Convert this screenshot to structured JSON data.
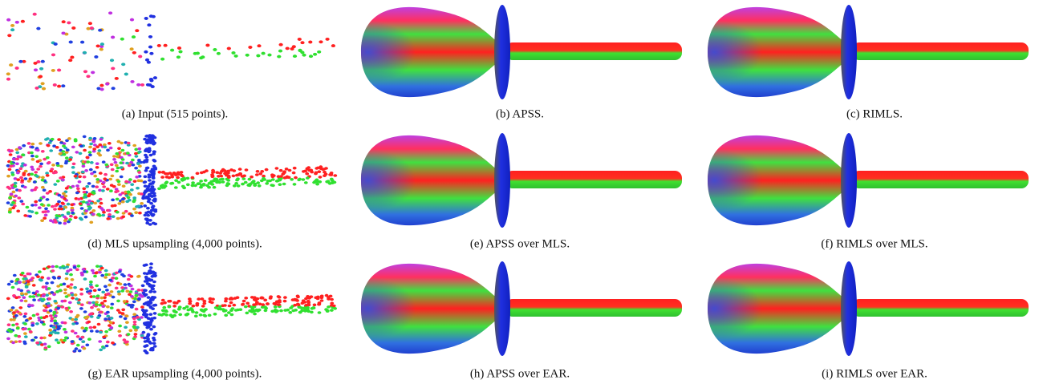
{
  "panels": [
    {
      "caption": "(a) Input (515 points)."
    },
    {
      "caption": "(b) APSS."
    },
    {
      "caption": "(c) RIMLS."
    },
    {
      "caption": "(d) MLS upsampling (4,000 points)."
    },
    {
      "caption": "(e) APSS over MLS."
    },
    {
      "caption": "(f) RIMLS over MLS."
    },
    {
      "caption": "(g) EAR upsampling (4,000 points)."
    },
    {
      "caption": "(h) APSS over EAR."
    },
    {
      "caption": "(i) RIMLS over EAR."
    }
  ]
}
